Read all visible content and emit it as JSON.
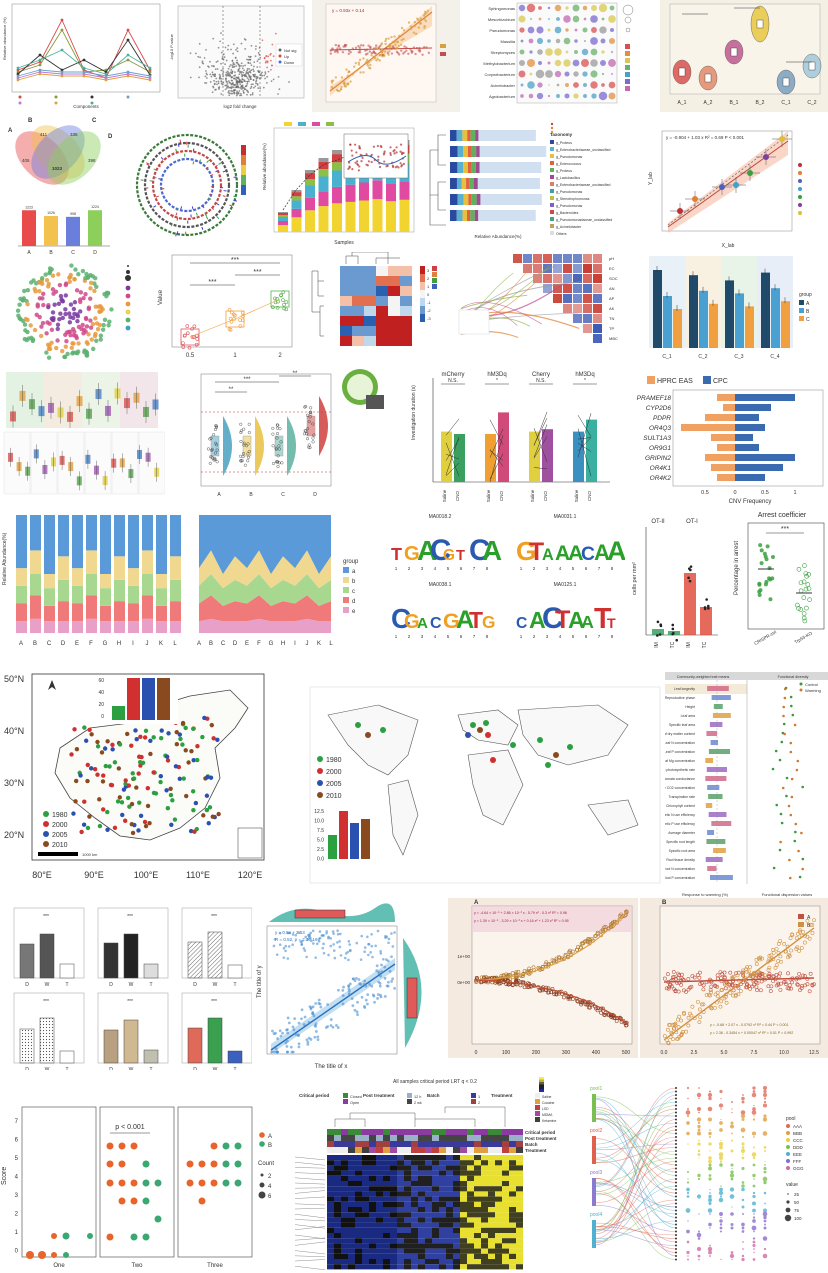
{
  "collage": {
    "left_panels": {
      "venn_sets": [
        "A",
        "B",
        "C",
        "D"
      ],
      "venn_counts": {
        "A_only": "405",
        "B_only": "411",
        "C_only": "335",
        "D_only": "398",
        "center": "1023"
      },
      "venn_bar": {
        "categories": [
          "A",
          "B",
          "C",
          "D"
        ],
        "values": [
          "1223",
          "1026",
          "998",
          "1224"
        ],
        "colors": [
          "#e94b4b",
          "#f2c14e",
          "#6a7fdb",
          "#8ccf5a"
        ]
      },
      "rel_abund_line_labels": [
        "Relative abundance (%)",
        "Components"
      ],
      "volcano_labels": [
        "log2 fold change",
        "-log10 P-value",
        "Not sig",
        "Up",
        "Down"
      ],
      "scatter_fit_eq": "y = 0.93x + 0.14",
      "bubble_rows": [
        "Sphingomonas",
        "Mesorhizobium",
        "Pseudomonas",
        "Massilia",
        "Streptomyces",
        "Methylobacterium",
        "Corynebacterium",
        "Acinetobacter",
        "Agrobacterium"
      ],
      "violin_cats": [
        "A_1",
        "A_2",
        "B_1",
        "B_2",
        "C_1",
        "C_2"
      ]
    },
    "row2": {
      "stack_labels": [
        "Relative abundance(%)",
        "Samples"
      ],
      "tree_legend_title": "Taxonomy",
      "tree_legend_items": [
        "g_Proteus",
        "g_Enterobacteriaceae_unclassified",
        "g_Pseudomonas",
        "g_Enterococcus",
        "g_Proteus",
        "g_Lactobacillus",
        "g_Enterobacteriaceae_unclassified",
        "g_Pseudomonas",
        "g_Stenotrophomonas",
        "g_Pseudomonas",
        "g_Bacteroides",
        "g_Pseudomonadaceae_unclassified",
        "g_Acinetobacter",
        "Others"
      ],
      "fit_equation": "y = -0.904 + 1.03 x   R² = 0.69   P < 0.001",
      "fit_axes": [
        "X_lab",
        "Y_lab"
      ]
    },
    "row3": {
      "dotbox": {
        "x": [
          "0.5",
          "1",
          "2"
        ],
        "ylabel": "Value",
        "sig": [
          "***",
          "***",
          "***"
        ]
      },
      "heatmap_scale": [
        "3",
        "2",
        "1",
        "0",
        "-1",
        "-2",
        "-3"
      ],
      "bar_group": {
        "cats": [
          "C_1",
          "C_2",
          "C_3",
          "C_4"
        ],
        "legend_title": "group",
        "legend": [
          "A",
          "B",
          "C"
        ]
      }
    },
    "row4": {
      "raincloud": {
        "cats": [
          "A",
          "B",
          "C",
          "D"
        ],
        "sig": [
          "**",
          "***",
          "**"
        ]
      },
      "paired": {
        "titles": [
          "mCherry",
          "hM3Dq",
          "Cherry",
          "hM3Dq"
        ],
        "sig": [
          "N.S.",
          "*",
          "N.S.",
          "*"
        ],
        "ylabel": "Investigation duration (s)",
        "ticks": [
          "Saline",
          "CNO",
          "Saline",
          "CNO",
          "Saline",
          "CNO",
          "Saline",
          "CNO"
        ]
      },
      "cnv": {
        "legend": [
          "HPRC EAS",
          "CPC"
        ],
        "genes": [
          "PRAMEF18",
          "CYP2D6",
          "PDPR",
          "OR4Q3",
          "SULT1A3",
          "OR9G1",
          "GRIPIN2",
          "OR4K1",
          "OR4K2"
        ],
        "xlabel": "CNV Frequency",
        "ticks": [
          "0.5",
          "0",
          "0.5",
          "1"
        ]
      }
    },
    "row5": {
      "stacked": {
        "ylabel": "Relative Abundance(%)",
        "cats": [
          "A",
          "B",
          "C",
          "D",
          "E",
          "F",
          "G",
          "H",
          "I",
          "J",
          "K",
          "L"
        ],
        "legend_title": "group",
        "legend": [
          "a",
          "b",
          "c",
          "d",
          "e"
        ]
      },
      "motifs": [
        "MA0018.2",
        "MA0031.1",
        "MA0038.1",
        "MA0125.1"
      ],
      "cells": {
        "title_left": "OT-II",
        "title_right": "OT-I",
        "ylabel": "cells per mm²",
        "ticks": [
          "IM",
          "TC",
          "IM",
          "TC"
        ]
      },
      "arrest": {
        "title": "Arrest coefficier",
        "ylabel": "Percentage in arrest",
        "sig": "***",
        "cats": [
          "CRISPR-ctrl",
          "Trp53-KO"
        ]
      }
    },
    "row6": {
      "china": {
        "lat": [
          "50°N",
          "40°N",
          "30°N",
          "20°N"
        ],
        "lon": [
          "80°E",
          "90°E",
          "100°E",
          "110°E",
          "120°E"
        ],
        "legend": [
          "1980",
          "2000",
          "2005",
          "2010"
        ],
        "inset_ticks": [
          "60",
          "40",
          "20",
          "0"
        ],
        "scale": "1000 km"
      },
      "world": {
        "legend": [
          "1980",
          "2000",
          "2005",
          "2010"
        ],
        "inset_ticks": [
          "12.5",
          "10.0",
          "7.5",
          "5.0",
          "2.5",
          "0.0"
        ]
      },
      "traits": {
        "header_left": "Community-weighted trait means",
        "header_right": "Functional diversity",
        "legend": [
          "Control",
          "Warming"
        ],
        "xlabel_left": "Response to warming (%)",
        "xlabel_right": "Functional dispersion values",
        "traits": [
          "Leaf longevity",
          "Reproductive phase",
          "Height",
          "Leaf area",
          "Specific leaf area",
          "Leaf dry matter content",
          "Leaf N concentration",
          "Leaf P concentration",
          "Leaf Mg concentration",
          "Net photosynthetic rate",
          "Stomata conductance",
          "Intercellular CO2 concentration",
          "Transpiration rate",
          "Chlorophyll content",
          "Photosynthetic N use efficiency",
          "Photosynthetic P use efficiency",
          "Average diameter",
          "Specific root length",
          "Specific root area",
          "Root tissue density",
          "Root N concentration",
          "Root P concentration"
        ]
      }
    },
    "row7": {
      "bars_cats": [
        "D",
        "W",
        "T"
      ],
      "marginal": {
        "xlabel": "The title of x",
        "ylabel": "The title of y",
        "eq1": "y = 0.5x + 2.53",
        "eq2": "R = 0.52, p = 2.2e-16"
      },
      "curves": {
        "eq_a": "y = -4.64 × 10⁻⁵ + 2.86 × 10⁻³ x - 5.79 x² - 0.3 x³   R² = 0.96",
        "eq_b": "y = 1.39 × 10⁻⁵ - 3.29 × 10⁻³ x + 0.16 x² + 1.23 x³   R² = 0.95",
        "eq_c": "y = -0.68 + 2.07 x - 0.0792 x²   R² = 0.44   P < 0.001",
        "eq_d": "y = 2.36 - 0.3454 x + 0.00047 x²   R² = 0.01   P = 0.992",
        "legend": [
          "A",
          "B"
        ],
        "xticks_a": [
          "0",
          "100",
          "200",
          "300",
          "400",
          "500"
        ],
        "xticks_b": [
          "0.0",
          "2.5",
          "5.0",
          "7.5",
          "10.0",
          "12.5"
        ],
        "yticks": [
          "1e+00",
          "0e+00"
        ]
      }
    },
    "row8": {
      "dotscore": {
        "facets": [
          "One",
          "Two",
          "Three"
        ],
        "pval": "p < 0.001",
        "ylabel": "Score",
        "yticks": [
          "7",
          "6",
          "5",
          "4",
          "3",
          "2",
          "1",
          "0"
        ],
        "legend_group": [
          "A",
          "B"
        ],
        "legend_count_title": "Count",
        "legend_count": [
          "2",
          "4",
          "6"
        ]
      },
      "heatmap": {
        "title": "All samples critical period LRT q < 0.2",
        "legend_titles": [
          "Critical period",
          "Post treatment",
          "Batch",
          "Treatment"
        ],
        "crit": [
          "Closed",
          "Open"
        ],
        "post": [
          "12 h",
          "2 wk"
        ],
        "batch": [
          "1",
          "2"
        ],
        "treat": [
          "Saline",
          "Cocaine",
          "LSD",
          "MDMA",
          "Ketamine"
        ],
        "rows": [
          "Critical period",
          "Post treatment",
          "Batch",
          "Treatment"
        ]
      },
      "sankey": {
        "left": [
          "pool1",
          "pool2",
          "pool3",
          "pool4"
        ],
        "legend_title": "pool",
        "legend": [
          "AAA",
          "BBB",
          "CCC",
          "DDD",
          "EEE",
          "FFF",
          "GGG"
        ],
        "size_title": "value",
        "sizes": [
          "25",
          "50",
          "75",
          "100"
        ]
      }
    }
  },
  "chart_data": [
    {
      "type": "bar",
      "title": "",
      "categories": [
        "A",
        "B",
        "C",
        "D"
      ],
      "values": [
        1223,
        1026,
        998,
        1224
      ],
      "xlabel": "",
      "ylabel": ""
    },
    {
      "type": "bar",
      "title": "",
      "categories": [
        "C_1",
        "C_2",
        "C_3",
        "C_4"
      ],
      "series": [
        {
          "name": "A",
          "values": [
            30,
            28,
            26,
            29
          ]
        },
        {
          "name": "B",
          "values": [
            20,
            22,
            21,
            23
          ]
        },
        {
          "name": "C",
          "values": [
            15,
            17,
            16,
            18
          ]
        }
      ],
      "ylim": [
        0,
        40
      ]
    },
    {
      "type": "bar",
      "title": "",
      "categories": [
        "PRAMEF18",
        "CYP2D6",
        "PDPR",
        "OR4Q3",
        "SULT1A3",
        "OR9G1",
        "GRIPIN2",
        "OR4K1",
        "OR4K2"
      ],
      "series": [
        {
          "name": "HPRC EAS",
          "values": [
            -0.3,
            -0.2,
            -0.5,
            -0.9,
            -0.4,
            -0.3,
            -0.5,
            -0.4,
            -0.3
          ]
        },
        {
          "name": "CPC",
          "values": [
            1.0,
            0.6,
            0.4,
            0.5,
            0.3,
            0.4,
            1.0,
            0.8,
            0.5
          ]
        }
      ],
      "xlabel": "CNV Frequency"
    },
    {
      "type": "area",
      "title": "",
      "categories": [
        "A",
        "B",
        "C",
        "D",
        "E",
        "F",
        "G",
        "H",
        "I",
        "J",
        "K",
        "L"
      ],
      "series": [
        {
          "name": "a",
          "values": [
            0.45,
            0.3,
            0.5,
            0.35,
            0.45,
            0.3,
            0.5,
            0.35,
            0.45,
            0.3,
            0.5,
            0.35
          ]
        },
        {
          "name": "b",
          "values": [
            0.15,
            0.2,
            0.12,
            0.2,
            0.15,
            0.2,
            0.12,
            0.2,
            0.15,
            0.2,
            0.12,
            0.2
          ]
        },
        {
          "name": "c",
          "values": [
            0.15,
            0.18,
            0.15,
            0.18,
            0.15,
            0.18,
            0.15,
            0.18,
            0.15,
            0.18,
            0.15,
            0.18
          ]
        },
        {
          "name": "d",
          "values": [
            0.15,
            0.2,
            0.13,
            0.17,
            0.15,
            0.2,
            0.13,
            0.17,
            0.15,
            0.2,
            0.13,
            0.17
          ]
        },
        {
          "name": "e",
          "values": [
            0.1,
            0.12,
            0.1,
            0.1,
            0.1,
            0.12,
            0.1,
            0.1,
            0.1,
            0.12,
            0.1,
            0.1
          ]
        }
      ],
      "ylabel": "Relative Abundance(%)",
      "ylim": [
        0,
        1
      ]
    },
    {
      "type": "bar",
      "title": "",
      "categories": [
        "1980",
        "2000",
        "2005",
        "2010"
      ],
      "values": [
        20,
        60,
        60,
        60
      ],
      "ylim": [
        0,
        60
      ]
    },
    {
      "type": "bar",
      "title": "",
      "categories": [
        "1980",
        "2000",
        "2005",
        "2010"
      ],
      "values": [
        6,
        12,
        9,
        10
      ],
      "ylim": [
        0,
        12.5
      ]
    },
    {
      "type": "scatter",
      "title": "",
      "xlabel": "The title of x",
      "ylabel": "The title of y"
    },
    {
      "type": "scatter",
      "title": "",
      "series": [
        {
          "name": "A",
          "values": [
            1,
            2,
            1,
            3,
            2,
            4,
            2,
            3,
            1,
            2
          ]
        },
        {
          "name": "B",
          "values": [
            1,
            1,
            2,
            1,
            3,
            1,
            2,
            1,
            1,
            2
          ]
        }
      ],
      "categories": [
        "One",
        "Two",
        "Three"
      ],
      "ylabel": "Score",
      "ylim": [
        0,
        7
      ]
    }
  ]
}
